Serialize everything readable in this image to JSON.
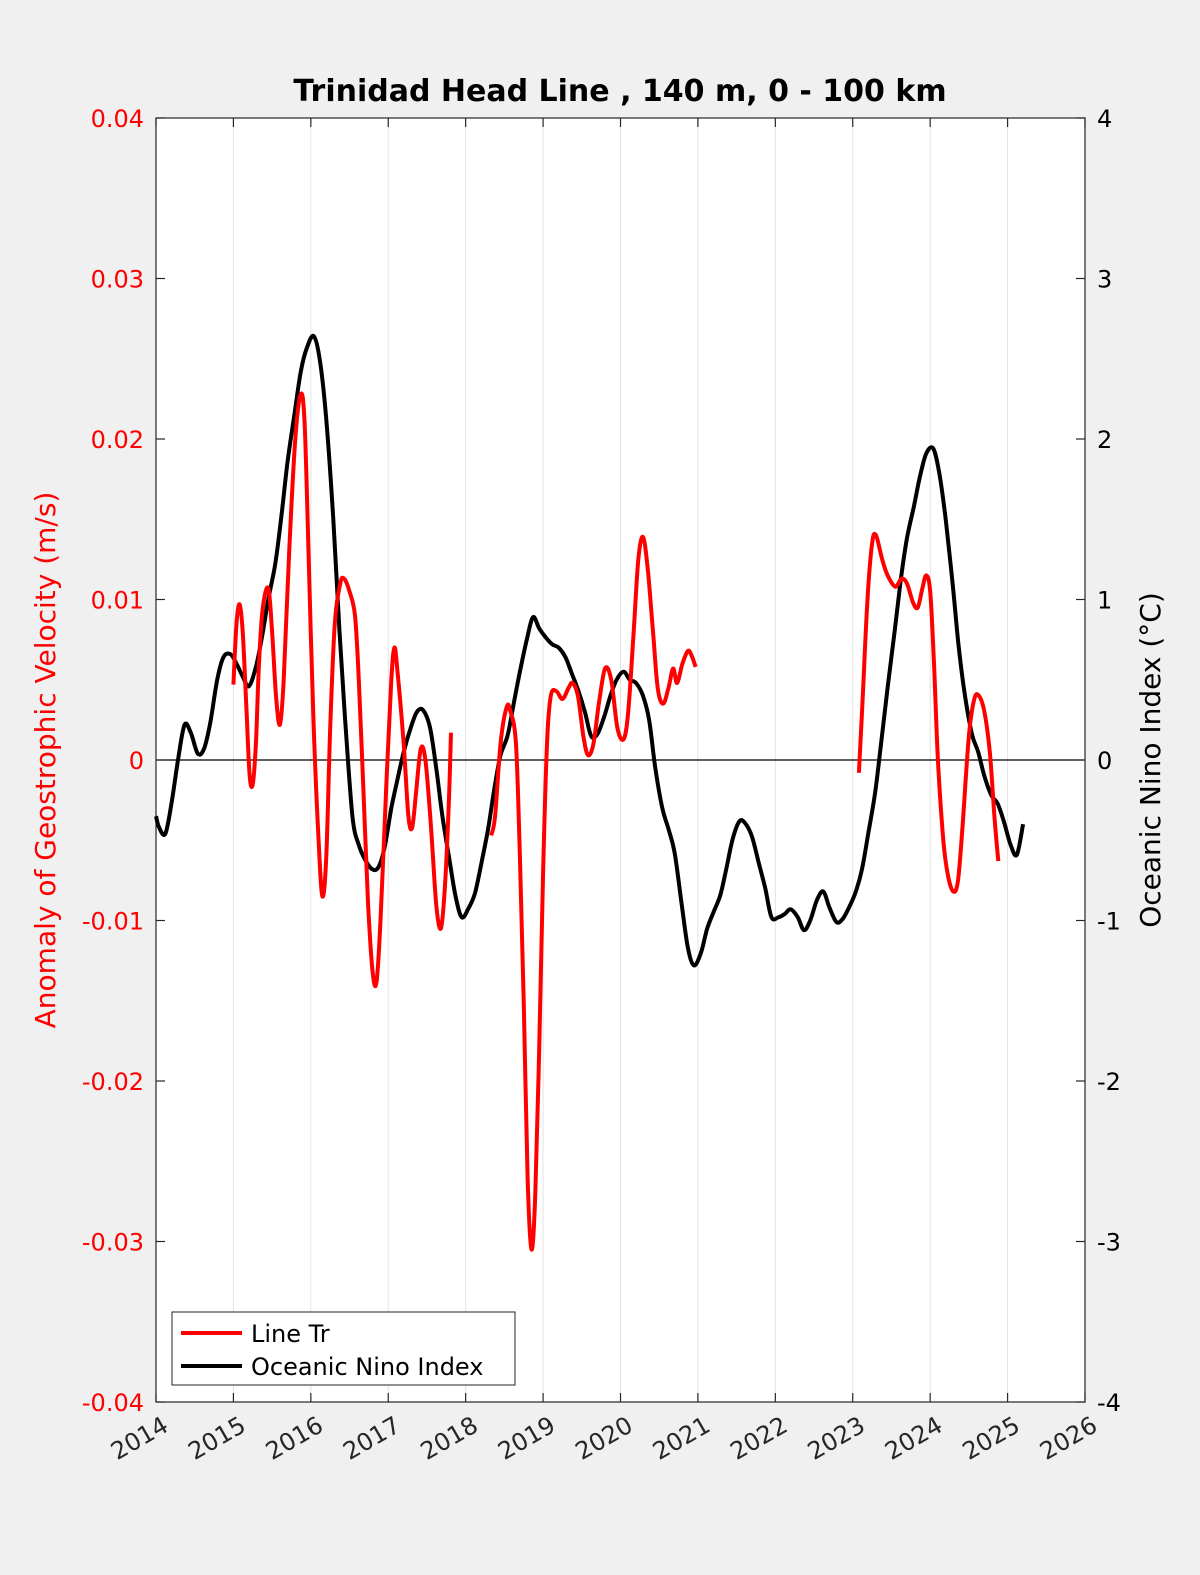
{
  "chart_data": {
    "type": "line",
    "title": "Trinidad Head Line , 140 m, 0 - 100 km",
    "ylabel_left": "Anomaly of Geostrophic Velocity (m/s)",
    "ylabel_right": "Oceanic Nino Index (°C)",
    "xlabel": "",
    "xlim": [
      2014,
      2026
    ],
    "ylim_left": [
      -0.04,
      0.04
    ],
    "ylim_right": [
      -4,
      4
    ],
    "x_ticks": [
      "2014",
      "2015",
      "2016",
      "2017",
      "2018",
      "2019",
      "2020",
      "2021",
      "2022",
      "2023",
      "2024",
      "2025",
      "2026"
    ],
    "y_ticks_left": [
      "0.04",
      "0.03",
      "0.02",
      "0.01",
      "0",
      "-0.01",
      "-0.02",
      "-0.03",
      "-0.04"
    ],
    "y_ticks_right": [
      "4",
      "3",
      "2",
      "1",
      "0",
      "-1",
      "-2",
      "-3",
      "-4"
    ],
    "grid": "vertical",
    "zero_line": true,
    "legend_position": "bottom-left",
    "series": [
      {
        "name": "Line Tr",
        "axis": "left",
        "color": "#ff0000",
        "segments": [
          [
            [
              2015.0,
              0.0047
            ],
            [
              2015.04,
              0.0085
            ],
            [
              2015.08,
              0.0097
            ],
            [
              2015.12,
              0.008
            ],
            [
              2015.17,
              0.003
            ],
            [
              2015.21,
              -0.001
            ],
            [
              2015.25,
              -0.0015
            ],
            [
              2015.29,
              0.001
            ],
            [
              2015.33,
              0.006
            ],
            [
              2015.38,
              0.0095
            ],
            [
              2015.45,
              0.0107
            ],
            [
              2015.5,
              0.008
            ],
            [
              2015.55,
              0.004
            ],
            [
              2015.6,
              0.0022
            ],
            [
              2015.65,
              0.005
            ],
            [
              2015.72,
              0.013
            ],
            [
              2015.8,
              0.02
            ],
            [
              2015.87,
              0.0228
            ],
            [
              2015.92,
              0.021
            ],
            [
              2015.97,
              0.013
            ],
            [
              2016.03,
              0.003
            ],
            [
              2016.1,
              -0.005
            ],
            [
              2016.15,
              -0.0085
            ],
            [
              2016.2,
              -0.006
            ],
            [
              2016.25,
              0.002
            ],
            [
              2016.31,
              0.0085
            ],
            [
              2016.38,
              0.011
            ],
            [
              2016.43,
              0.0113
            ],
            [
              2016.5,
              0.0105
            ],
            [
              2016.57,
              0.009
            ],
            [
              2016.62,
              0.005
            ],
            [
              2016.68,
              -0.002
            ],
            [
              2016.74,
              -0.009
            ],
            [
              2016.8,
              -0.0133
            ],
            [
              2016.85,
              -0.0138
            ],
            [
              2016.9,
              -0.01
            ],
            [
              2016.98,
              -0.001
            ],
            [
              2017.04,
              0.005
            ],
            [
              2017.08,
              0.007
            ],
            [
              2017.12,
              0.0055
            ],
            [
              2017.2,
              0.001
            ],
            [
              2017.26,
              -0.0035
            ],
            [
              2017.31,
              -0.0042
            ],
            [
              2017.36,
              -0.002
            ],
            [
              2017.42,
              0.0007
            ],
            [
              2017.48,
              0.0
            ],
            [
              2017.55,
              -0.004
            ],
            [
              2017.62,
              -0.009
            ],
            [
              2017.68,
              -0.0105
            ],
            [
              2017.73,
              -0.008
            ],
            [
              2017.78,
              -0.003
            ],
            [
              2017.81,
              0.0017
            ]
          ],
          [
            [
              2018.33,
              -0.0047
            ],
            [
              2018.38,
              -0.0035
            ],
            [
              2018.45,
              0.001
            ],
            [
              2018.53,
              0.0033
            ],
            [
              2018.58,
              0.003
            ],
            [
              2018.65,
              0.001
            ],
            [
              2018.7,
              -0.006
            ],
            [
              2018.75,
              -0.015
            ],
            [
              2018.8,
              -0.026
            ],
            [
              2018.85,
              -0.0305
            ],
            [
              2018.9,
              -0.027
            ],
            [
              2018.95,
              -0.018
            ],
            [
              2019.0,
              -0.007
            ],
            [
              2019.05,
              0.001
            ],
            [
              2019.1,
              0.004
            ],
            [
              2019.17,
              0.0043
            ],
            [
              2019.25,
              0.0038
            ],
            [
              2019.33,
              0.0045
            ],
            [
              2019.38,
              0.0048
            ],
            [
              2019.45,
              0.004
            ],
            [
              2019.52,
              0.0015
            ],
            [
              2019.58,
              0.0003
            ],
            [
              2019.65,
              0.001
            ],
            [
              2019.72,
              0.0035
            ],
            [
              2019.8,
              0.0057
            ],
            [
              2019.88,
              0.005
            ],
            [
              2019.96,
              0.002
            ],
            [
              2020.04,
              0.0013
            ],
            [
              2020.1,
              0.003
            ],
            [
              2020.17,
              0.008
            ],
            [
              2020.23,
              0.0125
            ],
            [
              2020.29,
              0.0139
            ],
            [
              2020.35,
              0.012
            ],
            [
              2020.42,
              0.008
            ],
            [
              2020.48,
              0.0045
            ],
            [
              2020.55,
              0.0035
            ],
            [
              2020.62,
              0.0045
            ],
            [
              2020.68,
              0.0057
            ],
            [
              2020.73,
              0.0048
            ],
            [
              2020.8,
              0.006
            ],
            [
              2020.87,
              0.0068
            ],
            [
              2020.92,
              0.0065
            ],
            [
              2020.97,
              0.0058
            ]
          ],
          [
            [
              2023.08,
              -0.0008
            ],
            [
              2023.13,
              0.004
            ],
            [
              2023.19,
              0.01
            ],
            [
              2023.25,
              0.0135
            ],
            [
              2023.3,
              0.014
            ],
            [
              2023.38,
              0.0125
            ],
            [
              2023.45,
              0.0115
            ],
            [
              2023.55,
              0.0108
            ],
            [
              2023.63,
              0.0113
            ],
            [
              2023.7,
              0.011
            ],
            [
              2023.78,
              0.0098
            ],
            [
              2023.84,
              0.0095
            ],
            [
              2023.9,
              0.0107
            ],
            [
              2023.95,
              0.0115
            ],
            [
              2024.0,
              0.0105
            ],
            [
              2024.05,
              0.006
            ],
            [
              2024.1,
              0.0
            ],
            [
              2024.17,
              -0.005
            ],
            [
              2024.23,
              -0.0072
            ],
            [
              2024.3,
              -0.0082
            ],
            [
              2024.36,
              -0.0075
            ],
            [
              2024.42,
              -0.004
            ],
            [
              2024.5,
              0.0015
            ],
            [
              2024.57,
              0.0038
            ],
            [
              2024.63,
              0.004
            ],
            [
              2024.7,
              0.003
            ],
            [
              2024.77,
              0.0005
            ],
            [
              2024.83,
              -0.0035
            ],
            [
              2024.88,
              -0.0063
            ]
          ]
        ]
      },
      {
        "name": "Oceanic Nino Index",
        "axis": "right",
        "color": "#000000",
        "segments": [
          [
            [
              2014.0,
              -0.35
            ],
            [
              2014.04,
              -0.42
            ],
            [
              2014.12,
              -0.46
            ],
            [
              2014.2,
              -0.27
            ],
            [
              2014.29,
              0.02
            ],
            [
              2014.37,
              0.22
            ],
            [
              2014.45,
              0.17
            ],
            [
              2014.54,
              0.04
            ],
            [
              2014.62,
              0.07
            ],
            [
              2014.7,
              0.23
            ],
            [
              2014.79,
              0.5
            ],
            [
              2014.87,
              0.64
            ],
            [
              2014.96,
              0.66
            ],
            [
              2015.04,
              0.6
            ],
            [
              2015.12,
              0.52
            ],
            [
              2015.2,
              0.46
            ],
            [
              2015.29,
              0.58
            ],
            [
              2015.37,
              0.77
            ],
            [
              2015.45,
              1.0
            ],
            [
              2015.54,
              1.22
            ],
            [
              2015.62,
              1.52
            ],
            [
              2015.7,
              1.86
            ],
            [
              2015.79,
              2.16
            ],
            [
              2015.87,
              2.42
            ],
            [
              2015.95,
              2.57
            ],
            [
              2016.04,
              2.64
            ],
            [
              2016.12,
              2.48
            ],
            [
              2016.2,
              2.12
            ],
            [
              2016.29,
              1.5
            ],
            [
              2016.37,
              0.8
            ],
            [
              2016.45,
              0.2
            ],
            [
              2016.54,
              -0.36
            ],
            [
              2016.62,
              -0.53
            ],
            [
              2016.7,
              -0.62
            ],
            [
              2016.79,
              -0.68
            ],
            [
              2016.87,
              -0.67
            ],
            [
              2016.95,
              -0.55
            ],
            [
              2017.04,
              -0.3
            ],
            [
              2017.12,
              -0.12
            ],
            [
              2017.2,
              0.05
            ],
            [
              2017.29,
              0.2
            ],
            [
              2017.37,
              0.3
            ],
            [
              2017.45,
              0.31
            ],
            [
              2017.54,
              0.2
            ],
            [
              2017.62,
              -0.05
            ],
            [
              2017.7,
              -0.35
            ],
            [
              2017.79,
              -0.62
            ],
            [
              2017.87,
              -0.85
            ],
            [
              2017.95,
              -0.98
            ],
            [
              2018.04,
              -0.92
            ],
            [
              2018.12,
              -0.83
            ],
            [
              2018.2,
              -0.65
            ],
            [
              2018.29,
              -0.43
            ],
            [
              2018.37,
              -0.18
            ],
            [
              2018.45,
              0.03
            ],
            [
              2018.54,
              0.15
            ],
            [
              2018.62,
              0.35
            ],
            [
              2018.7,
              0.55
            ],
            [
              2018.79,
              0.75
            ],
            [
              2018.87,
              0.89
            ],
            [
              2018.95,
              0.82
            ],
            [
              2019.04,
              0.76
            ],
            [
              2019.12,
              0.72
            ],
            [
              2019.2,
              0.7
            ],
            [
              2019.29,
              0.64
            ],
            [
              2019.37,
              0.54
            ],
            [
              2019.45,
              0.44
            ],
            [
              2019.54,
              0.3
            ],
            [
              2019.62,
              0.15
            ],
            [
              2019.7,
              0.16
            ],
            [
              2019.79,
              0.27
            ],
            [
              2019.87,
              0.4
            ],
            [
              2019.95,
              0.5
            ],
            [
              2020.04,
              0.55
            ],
            [
              2020.12,
              0.5
            ],
            [
              2020.2,
              0.48
            ],
            [
              2020.29,
              0.4
            ],
            [
              2020.37,
              0.25
            ],
            [
              2020.45,
              -0.05
            ],
            [
              2020.54,
              -0.3
            ],
            [
              2020.62,
              -0.43
            ],
            [
              2020.7,
              -0.58
            ],
            [
              2020.79,
              -0.9
            ],
            [
              2020.87,
              -1.17
            ],
            [
              2020.95,
              -1.28
            ],
            [
              2021.04,
              -1.2
            ],
            [
              2021.12,
              -1.05
            ],
            [
              2021.2,
              -0.95
            ],
            [
              2021.29,
              -0.84
            ],
            [
              2021.37,
              -0.67
            ],
            [
              2021.45,
              -0.49
            ],
            [
              2021.54,
              -0.38
            ],
            [
              2021.62,
              -0.4
            ],
            [
              2021.7,
              -0.48
            ],
            [
              2021.79,
              -0.65
            ],
            [
              2021.87,
              -0.8
            ],
            [
              2021.95,
              -0.98
            ],
            [
              2022.04,
              -0.98
            ],
            [
              2022.12,
              -0.96
            ],
            [
              2022.2,
              -0.93
            ],
            [
              2022.29,
              -0.98
            ],
            [
              2022.37,
              -1.06
            ],
            [
              2022.45,
              -1.0
            ],
            [
              2022.54,
              -0.87
            ],
            [
              2022.62,
              -0.82
            ],
            [
              2022.7,
              -0.92
            ],
            [
              2022.79,
              -1.01
            ],
            [
              2022.87,
              -0.99
            ],
            [
              2022.95,
              -0.92
            ],
            [
              2023.04,
              -0.82
            ],
            [
              2023.12,
              -0.68
            ],
            [
              2023.2,
              -0.46
            ],
            [
              2023.29,
              -0.2
            ],
            [
              2023.37,
              0.12
            ],
            [
              2023.45,
              0.45
            ],
            [
              2023.54,
              0.8
            ],
            [
              2023.62,
              1.12
            ],
            [
              2023.7,
              1.38
            ],
            [
              2023.79,
              1.58
            ],
            [
              2023.87,
              1.77
            ],
            [
              2023.95,
              1.91
            ],
            [
              2024.04,
              1.94
            ],
            [
              2024.12,
              1.78
            ],
            [
              2024.2,
              1.5
            ],
            [
              2024.29,
              1.1
            ],
            [
              2024.37,
              0.7
            ],
            [
              2024.45,
              0.4
            ],
            [
              2024.54,
              0.16
            ],
            [
              2024.62,
              0.05
            ],
            [
              2024.7,
              -0.1
            ],
            [
              2024.79,
              -0.22
            ],
            [
              2024.87,
              -0.27
            ],
            [
              2024.95,
              -0.38
            ],
            [
              2025.04,
              -0.53
            ],
            [
              2025.12,
              -0.59
            ],
            [
              2025.2,
              -0.4
            ]
          ]
        ]
      }
    ]
  }
}
